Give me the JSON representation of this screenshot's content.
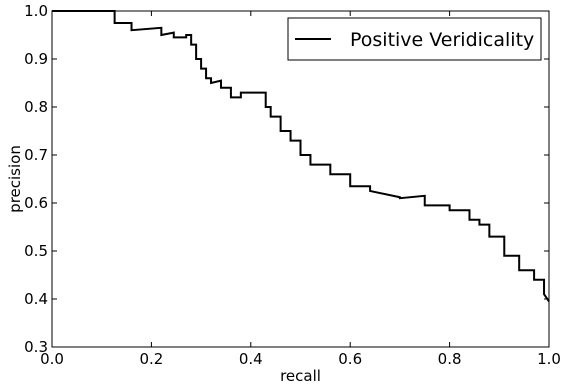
{
  "chart_data": {
    "type": "line",
    "title": "",
    "xlabel": "recall",
    "ylabel": "precision",
    "xlim": [
      0.0,
      1.0
    ],
    "ylim": [
      0.3,
      1.0
    ],
    "xticks": [
      "0.0",
      "0.2",
      "0.4",
      "0.6",
      "0.8",
      "1.0"
    ],
    "yticks": [
      "0.3",
      "0.4",
      "0.5",
      "0.6",
      "0.7",
      "0.8",
      "0.9",
      "1.0"
    ],
    "grid": false,
    "legend": {
      "position": "top-right"
    },
    "series": [
      {
        "name": "Positive Veridicality",
        "color": "#000000",
        "x": [
          0.0,
          0.126,
          0.126,
          0.16,
          0.16,
          0.22,
          0.22,
          0.245,
          0.245,
          0.27,
          0.27,
          0.28,
          0.28,
          0.29,
          0.29,
          0.3,
          0.3,
          0.31,
          0.31,
          0.32,
          0.32,
          0.34,
          0.34,
          0.36,
          0.36,
          0.38,
          0.38,
          0.43,
          0.43,
          0.44,
          0.44,
          0.46,
          0.46,
          0.48,
          0.48,
          0.5,
          0.5,
          0.52,
          0.52,
          0.56,
          0.56,
          0.6,
          0.6,
          0.64,
          0.64,
          0.7,
          0.7,
          0.75,
          0.75,
          0.8,
          0.8,
          0.84,
          0.84,
          0.86,
          0.86,
          0.88,
          0.88,
          0.91,
          0.91,
          0.94,
          0.94,
          0.97,
          0.97,
          0.99,
          0.99,
          1.0
        ],
        "y": [
          1.0,
          1.0,
          0.975,
          0.975,
          0.96,
          0.965,
          0.95,
          0.955,
          0.945,
          0.945,
          0.95,
          0.95,
          0.93,
          0.93,
          0.9,
          0.9,
          0.88,
          0.88,
          0.86,
          0.86,
          0.85,
          0.855,
          0.84,
          0.84,
          0.82,
          0.82,
          0.83,
          0.83,
          0.8,
          0.8,
          0.78,
          0.78,
          0.75,
          0.75,
          0.73,
          0.73,
          0.7,
          0.7,
          0.68,
          0.68,
          0.66,
          0.66,
          0.635,
          0.635,
          0.625,
          0.612,
          0.61,
          0.615,
          0.595,
          0.595,
          0.585,
          0.585,
          0.565,
          0.565,
          0.555,
          0.555,
          0.53,
          0.53,
          0.49,
          0.49,
          0.46,
          0.46,
          0.44,
          0.44,
          0.41,
          0.395
        ]
      }
    ]
  }
}
